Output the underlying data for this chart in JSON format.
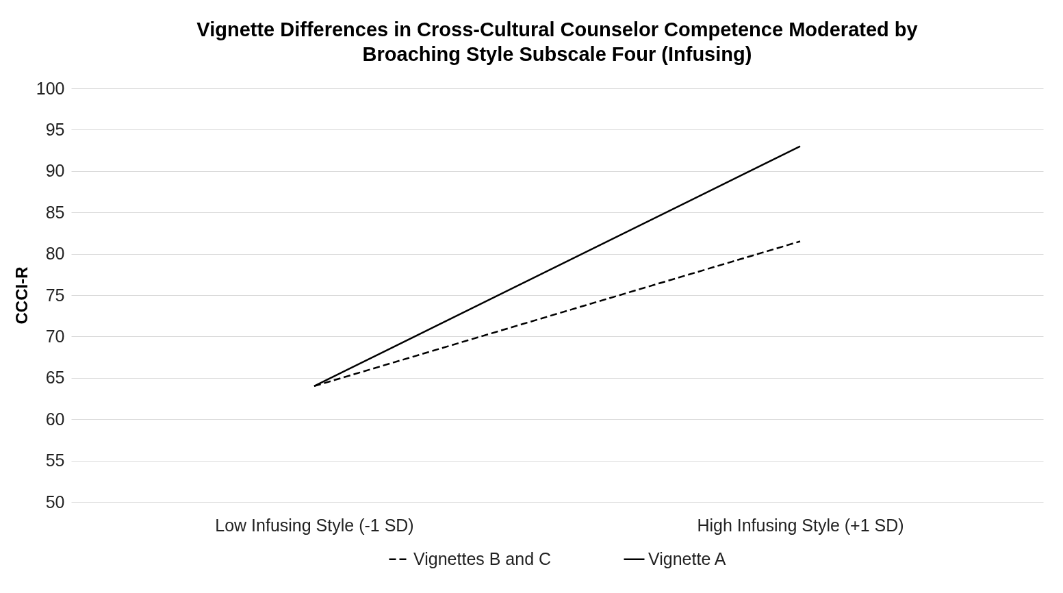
{
  "chart_data": {
    "type": "line",
    "title": "Vignette Differences in Cross-Cultural Counselor Competence Moderated by Broaching Style Subscale Four (Infusing)",
    "ylabel": "CCCI-R",
    "categories": [
      "Low Infusing Style (-1 SD)",
      "High Infusing Style (+1 SD)"
    ],
    "series": [
      {
        "name": "Vignettes B and C",
        "color": "#000000",
        "line_style": "dashed",
        "values": [
          64.0,
          81.5
        ]
      },
      {
        "name": "Vignette A",
        "color": "#000000",
        "line_style": "solid",
        "values": [
          64.0,
          93.0
        ]
      }
    ],
    "ylim": [
      50,
      100
    ],
    "yticks": [
      50,
      55,
      60,
      65,
      70,
      75,
      80,
      85,
      90,
      95,
      100
    ],
    "grid": "y",
    "legend": "bottom",
    "marker": "none"
  }
}
